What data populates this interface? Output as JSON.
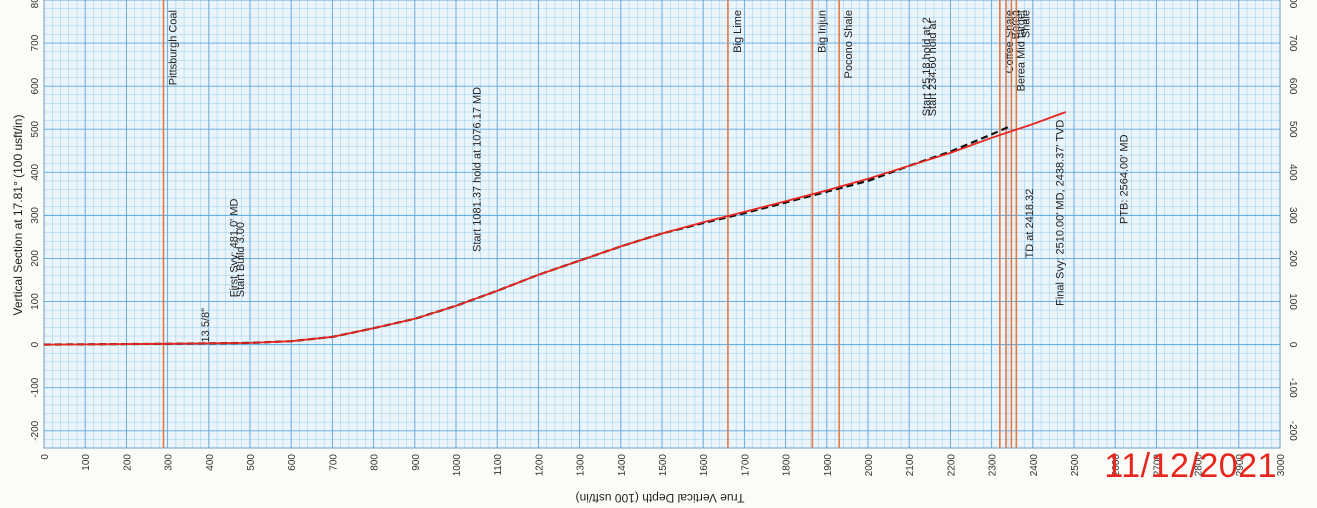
{
  "stamp": "11/12/2021",
  "chart_data": {
    "type": "line",
    "xlabel": "True Vertical Depth (100 usft/in)",
    "ylabel": "Vertical Section at 17.81° (100 usft/in)",
    "xlim": [
      0,
      3000
    ],
    "ylim": [
      -240,
      800
    ],
    "x_ticks": [
      0,
      100,
      200,
      300,
      400,
      500,
      600,
      700,
      800,
      900,
      1000,
      1100,
      1200,
      1300,
      1400,
      1500,
      1600,
      1700,
      1800,
      1900,
      2000,
      2100,
      2200,
      2300,
      2400,
      2500,
      2600,
      2700,
      2800,
      2900,
      3000
    ],
    "y_ticks": [
      -200,
      -100,
      0,
      100,
      200,
      300,
      400,
      500,
      600,
      700,
      800
    ],
    "grid": true,
    "colors": {
      "plan": "#111111",
      "actual": "#e8261e",
      "formation": "#e07a4a",
      "grid": "#8cc3e8",
      "grid_major": "#5aa6dc"
    },
    "series": [
      {
        "style": "dashed",
        "x": [
          0,
          300,
          500,
          600,
          700,
          800,
          900,
          1000,
          1100,
          1200,
          1300,
          1400,
          1500,
          1600,
          1700,
          1800,
          1900,
          2000,
          2100,
          2200,
          2300,
          2340
        ],
        "y": [
          0,
          2,
          4,
          8,
          18,
          38,
          60,
          90,
          125,
          162,
          195,
          228,
          258,
          282,
          305,
          330,
          355,
          380,
          415,
          448,
          488,
          505
        ]
      },
      {
        "style": "solid",
        "x": [
          0,
          300,
          500,
          600,
          700,
          800,
          900,
          1000,
          1100,
          1200,
          1300,
          1400,
          1500,
          1600,
          1700,
          1800,
          1900,
          2000,
          2100,
          2200,
          2300,
          2400,
          2480
        ],
        "y": [
          0,
          2,
          4,
          8,
          18,
          38,
          60,
          90,
          125,
          162,
          195,
          228,
          258,
          284,
          308,
          333,
          358,
          385,
          415,
          445,
          480,
          512,
          540
        ]
      }
    ],
    "formations": [
      {
        "name": "Pittsburgh Coal",
        "x": 290
      },
      {
        "name": "Big Lime",
        "x": 1660
      },
      {
        "name": "Big Injun",
        "x": 1865
      },
      {
        "name": "Pocono Shale",
        "x": 1930
      },
      {
        "name": "Coffee Shale",
        "x": 2320
      },
      {
        "name": "Berea",
        "x": 2335
      },
      {
        "name": "Berea Mid target",
        "x": 2348
      },
      {
        "name": "Shale",
        "x": 2360
      }
    ],
    "annotations": [
      {
        "text": "13 5/8\"",
        "x": 400,
        "y": 5
      },
      {
        "text": "First Svy: 481.0' MD",
        "x": 470,
        "y": 110
      },
      {
        "text": "Start Build 3.00",
        "x": 485,
        "y": 110
      },
      {
        "text": "Start 1081.37 hold at 1076.17 MD",
        "x": 1060,
        "y": 215
      },
      {
        "text": "Start 25.18 hold at 2",
        "x": 2150,
        "y": 530
      },
      {
        "text": "Start 234.60 hold at",
        "x": 2165,
        "y": 530
      },
      {
        "text": "TD at 2418.32",
        "x": 2400,
        "y": 200
      },
      {
        "text": "Final Svy: 2510.00' MD, 2438.37' TVD",
        "x": 2475,
        "y": 90
      },
      {
        "text": "PTB: 2564.00' MD",
        "x": 2630,
        "y": 280
      }
    ]
  }
}
